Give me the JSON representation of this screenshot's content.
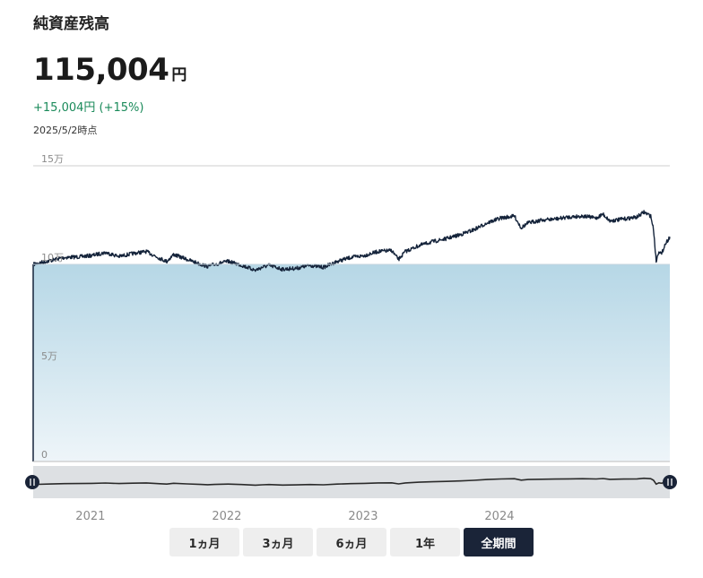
{
  "header": {
    "title": "純資産残高",
    "amount": "115,004",
    "unit": "円",
    "change": "+15,004円 (+15%)",
    "as_of": "2025/5/2時点"
  },
  "periods": [
    {
      "label": "1ヵ月",
      "active": false
    },
    {
      "label": "3ヵ月",
      "active": false
    },
    {
      "label": "6ヵ月",
      "active": false
    },
    {
      "label": "1年",
      "active": false
    },
    {
      "label": "全期間",
      "active": true
    }
  ],
  "colors": {
    "line": "#14233a",
    "area_top": "#b6d7e6",
    "area_bottom": "#eef5f9",
    "positive": "#1a8a5a"
  },
  "chart_data": {
    "type": "area",
    "y_ticks": [
      "15万",
      "10万",
      "5万",
      "0"
    ],
    "y_tick_values": [
      150000,
      100000,
      50000,
      0
    ],
    "ylim": [
      0,
      150000
    ],
    "baseline": 100000,
    "x_ticks": [
      "2021",
      "2022",
      "2023",
      "2024"
    ],
    "x_tick_years": [
      2021,
      2022,
      2023,
      2024
    ],
    "xlim": [
      2020.67,
      2025.34
    ],
    "x": [
      2020.67,
      2020.7,
      2020.8,
      2020.9,
      2021.0,
      2021.1,
      2021.2,
      2021.3,
      2021.4,
      2021.5,
      2021.6,
      2021.65,
      2021.7,
      2021.8,
      2021.9,
      2021.95,
      2022.0,
      2022.1,
      2022.2,
      2022.3,
      2022.35,
      2022.4,
      2022.5,
      2022.6,
      2022.7,
      2022.8,
      2022.9,
      2023.0,
      2023.1,
      2023.2,
      2023.3,
      2023.35,
      2023.4,
      2023.5,
      2023.6,
      2023.7,
      2023.8,
      2023.9,
      2024.0,
      2024.1,
      2024.2,
      2024.25,
      2024.3,
      2024.4,
      2024.5,
      2024.6,
      2024.7,
      2024.8,
      2024.85,
      2024.9,
      2025.0,
      2025.1,
      2025.15,
      2025.2,
      2025.22,
      2025.24,
      2025.26,
      2025.28,
      2025.3,
      2025.34
    ],
    "values": [
      100000,
      100500,
      102000,
      103500,
      103800,
      104500,
      106000,
      104000,
      105500,
      106500,
      103000,
      101500,
      105000,
      102500,
      100000,
      99000,
      100000,
      101500,
      99500,
      97000,
      98500,
      99500,
      97500,
      98000,
      99500,
      98500,
      101500,
      103500,
      104500,
      106500,
      107000,
      102500,
      106500,
      109500,
      111500,
      113000,
      115000,
      117500,
      121000,
      123500,
      124500,
      118500,
      121000,
      122500,
      123000,
      124000,
      124500,
      123500,
      125500,
      122000,
      123000,
      124000,
      126500,
      124500,
      118000,
      101500,
      107000,
      105000,
      109500,
      114000
    ]
  }
}
